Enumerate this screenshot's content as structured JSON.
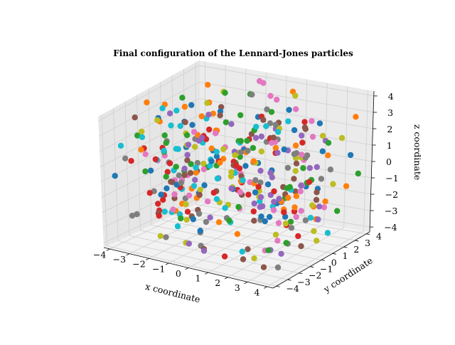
{
  "chart_data": {
    "type": "scatter",
    "projection": "3d",
    "title": "Final configuration of the Lennard-Jones particles",
    "xlabel": "x coordinate",
    "ylabel": "y coordinate",
    "zlabel": "z coordinate",
    "xlim": [
      -4.3,
      4.3
    ],
    "ylim": [
      -4.3,
      4.3
    ],
    "zlim": [
      -4.3,
      4.3
    ],
    "xticks": [
      "−4",
      "−3",
      "−2",
      "−1",
      "0",
      "1",
      "2",
      "3",
      "4"
    ],
    "yticks": [
      "−4",
      "−3",
      "−2",
      "−1",
      "0",
      "1",
      "2",
      "3",
      "4"
    ],
    "zticks": [
      "−4",
      "−3",
      "−2",
      "−1",
      "0",
      "1",
      "2",
      "3",
      "4"
    ],
    "grid": true,
    "pane_color": "#f2f2f2",
    "color_cycle": [
      "#1f77b4",
      "#ff7f0e",
      "#2ca02c",
      "#d62728",
      "#9467bd",
      "#8c564b",
      "#e377c2",
      "#7f7f7f",
      "#bcbd22",
      "#17becf"
    ],
    "n_particles": 400,
    "point_generation": "approximately uniform random positions within [-4, 4] on each axis; each particle colored by cycling through the default color cycle"
  }
}
